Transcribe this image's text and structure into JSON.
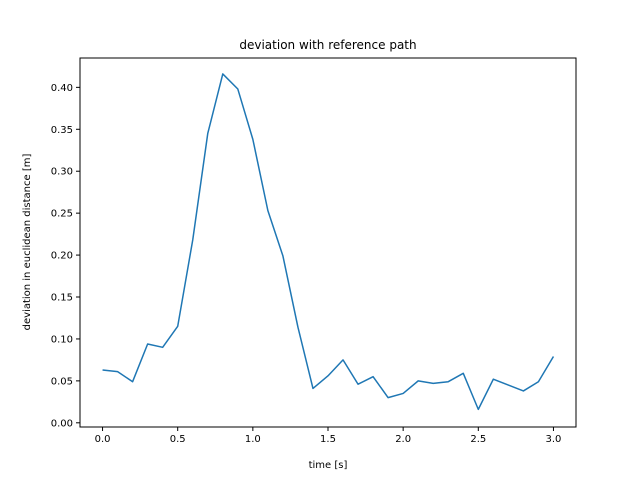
{
  "chart_data": {
    "type": "line",
    "title": "deviation with reference path",
    "xlabel": "time [s]",
    "ylabel": "deviation in euclidean distance [m]",
    "xlim": [
      -0.15,
      3.15
    ],
    "ylim": [
      -0.005,
      0.435
    ],
    "xticks": [
      0.0,
      0.5,
      1.0,
      1.5,
      2.0,
      2.5,
      3.0
    ],
    "xtick_labels": [
      "0.0",
      "0.5",
      "1.0",
      "1.5",
      "2.0",
      "2.5",
      "3.0"
    ],
    "yticks": [
      0.0,
      0.05,
      0.1,
      0.15,
      0.2,
      0.25,
      0.3,
      0.35,
      0.4
    ],
    "ytick_labels": [
      "0.00",
      "0.05",
      "0.10",
      "0.15",
      "0.20",
      "0.25",
      "0.30",
      "0.35",
      "0.40"
    ],
    "grid": false,
    "series": [
      {
        "color": "#1f77b4",
        "x": [
          0.0,
          0.1,
          0.2,
          0.3,
          0.4,
          0.5,
          0.6,
          0.7,
          0.8,
          0.9,
          1.0,
          1.1,
          1.2,
          1.3,
          1.4,
          1.5,
          1.6,
          1.7,
          1.8,
          1.9,
          2.0,
          2.1,
          2.2,
          2.3,
          2.4,
          2.5,
          2.6,
          2.7,
          2.8,
          2.9,
          3.0
        ],
        "y": [
          0.063,
          0.061,
          0.049,
          0.094,
          0.09,
          0.115,
          0.218,
          0.345,
          0.416,
          0.398,
          0.338,
          0.253,
          0.199,
          0.114,
          0.041,
          0.056,
          0.075,
          0.046,
          0.055,
          0.03,
          0.035,
          0.05,
          0.047,
          0.049,
          0.059,
          0.016,
          0.052,
          0.045,
          0.038,
          0.049,
          0.079
        ]
      }
    ]
  }
}
